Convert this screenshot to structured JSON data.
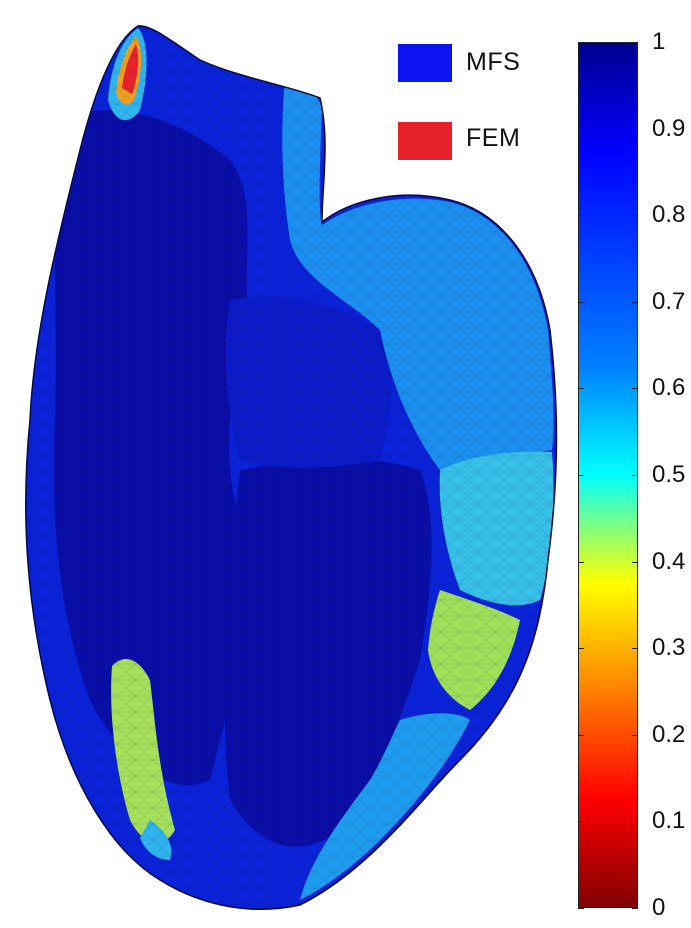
{
  "legend": {
    "items": [
      {
        "label": "MFS",
        "color": "#0a14f0"
      },
      {
        "label": "FEM",
        "color": "#e8222a"
      }
    ]
  },
  "colorbar": {
    "colormap": "jet",
    "range": [
      0,
      1
    ],
    "tick_labels": [
      "1",
      "0.9",
      "0.8",
      "0.7",
      "0.6",
      "0.5",
      "0.4",
      "0.3",
      "0.2",
      "0.1",
      "0"
    ]
  },
  "colors": {
    "dark_blue": "#0a0ea6",
    "blue": "#0a22d8",
    "light_blue": "#1b8ff0",
    "cyan_blue": "#2fb4ee",
    "green_yellow": "#9fe05a",
    "red": "#e8222a",
    "orange": "#f0a020"
  }
}
